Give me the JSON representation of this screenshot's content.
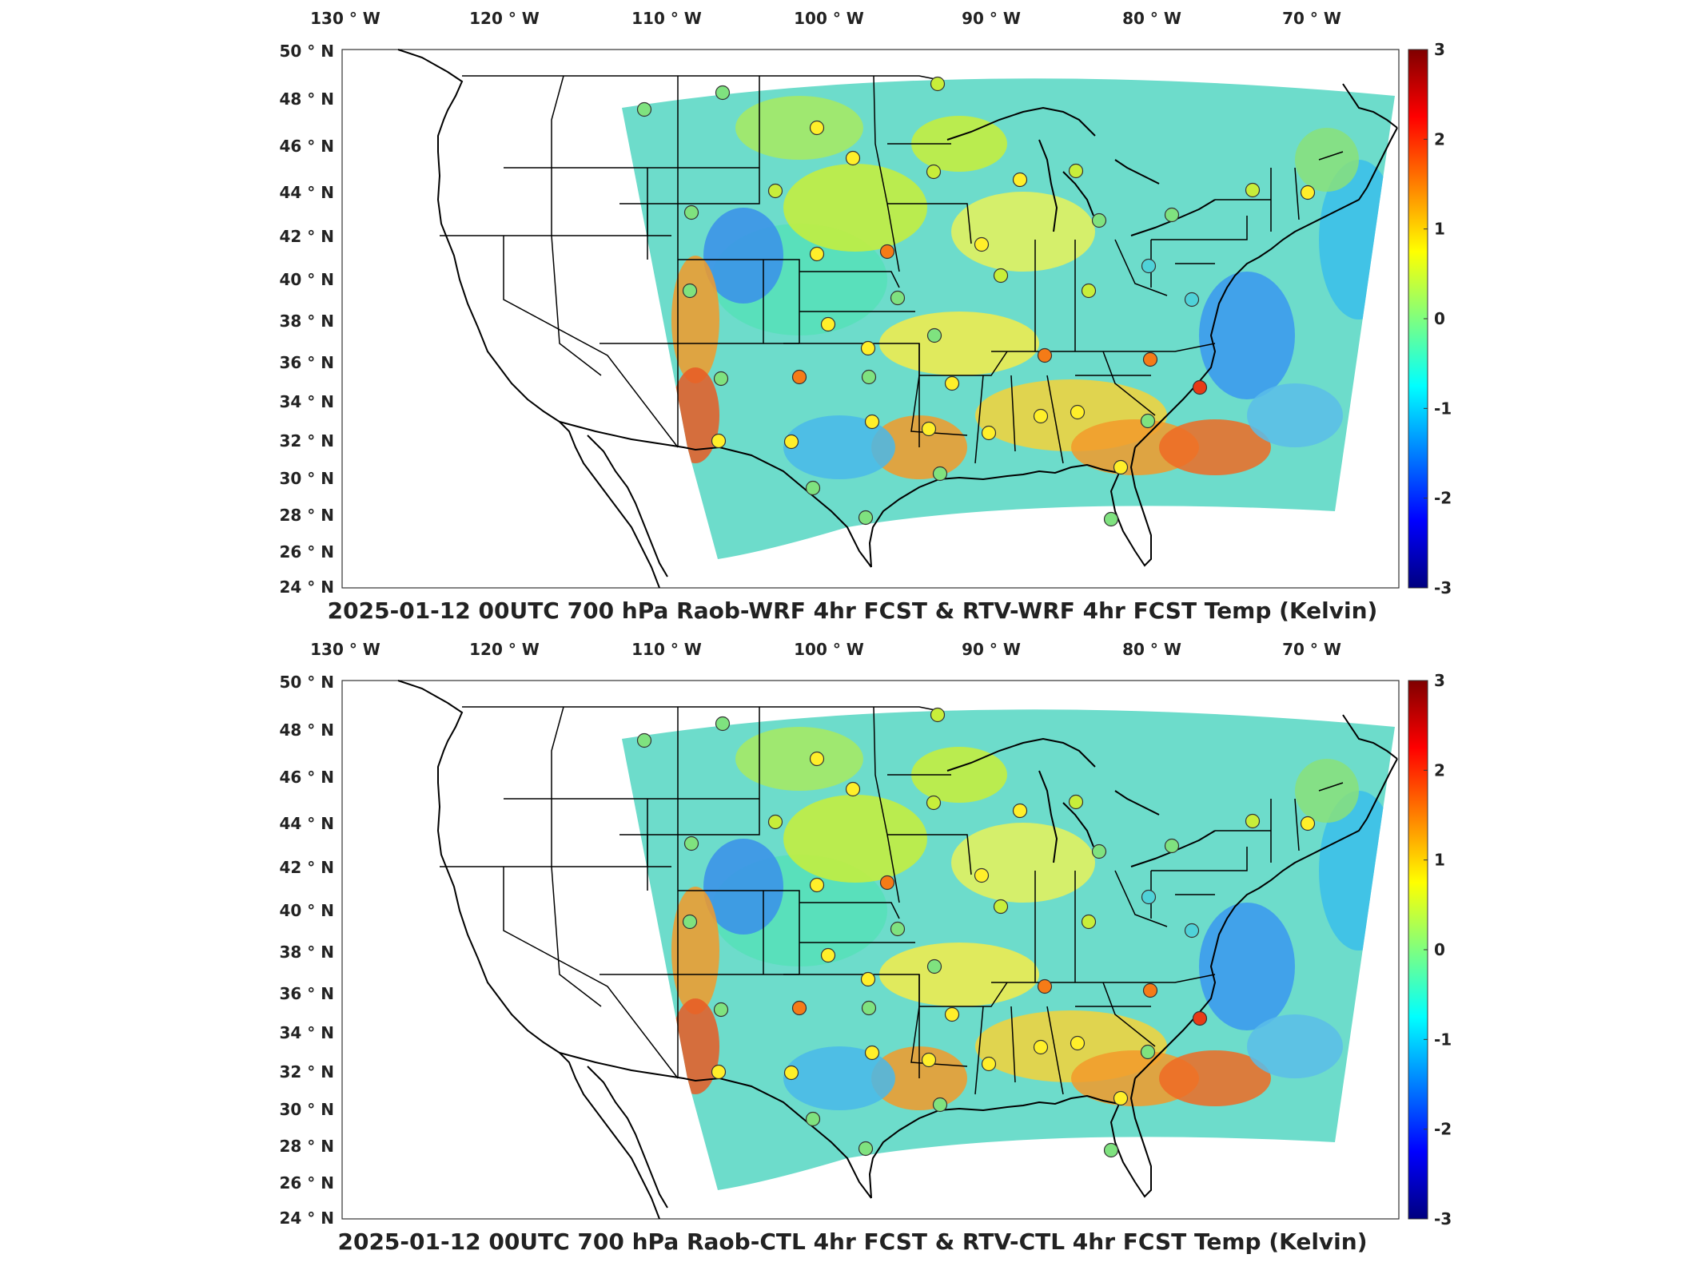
{
  "colorbar": {
    "ticks": [
      "3",
      "2",
      "1",
      "0",
      "-1",
      "-2",
      "-3"
    ],
    "colors": [
      "#00007f",
      "#0000ff",
      "#007fff",
      "#00ffff",
      "#7fff7f",
      "#ffff00",
      "#ff7f00",
      "#ff0000",
      "#7f0000"
    ]
  },
  "lon_labels": [
    "130",
    "120",
    "110",
    "100",
    "90",
    "80",
    "70"
  ],
  "lon_suffix": "W",
  "lat_labels": [
    "50",
    "48",
    "46",
    "44",
    "42",
    "40",
    "38",
    "36",
    "34",
    "32",
    "30",
    "28",
    "26",
    "24"
  ],
  "lat_suffix": "N",
  "degree_symbol": "°",
  "panels": [
    {
      "id": "top",
      "title": "2025-01-12 00UTC 700 hPa Raob-WRF 4hr FCST & RTV-WRF 4hr FCST Temp (Kelvin)"
    },
    {
      "id": "bottom",
      "title": "2025-01-12 00UTC 700 hPa Raob-CTL 4hr FCST & RTV-CTL 4hr FCST Temp (Kelvin)"
    }
  ]
}
